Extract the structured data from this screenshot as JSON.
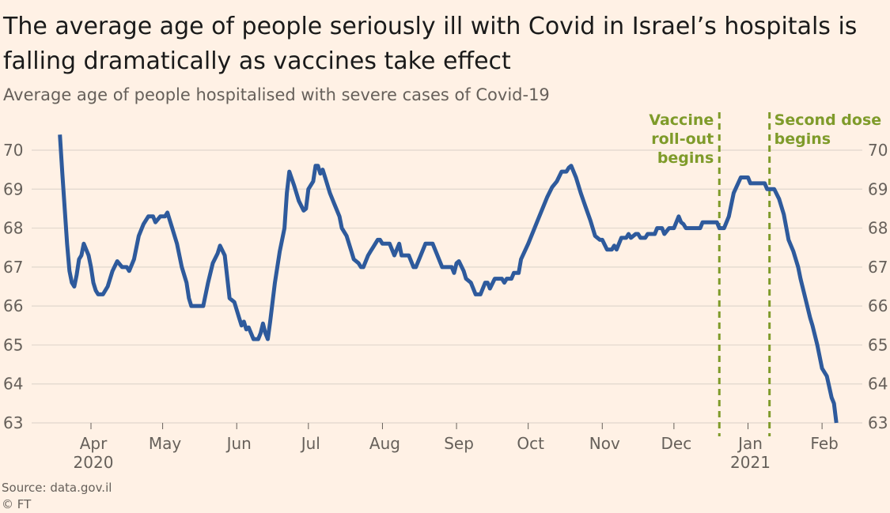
{
  "title": "The average age of people seriously ill with Covid in Israel’s hospitals is falling dramatically as vaccines take effect",
  "subtitle": "Average age of people hospitalised with severe cases of Covid-19",
  "source": "Source: data.gov.il",
  "copyright": "© FT",
  "chart_data": {
    "type": "line",
    "ylim": [
      63,
      70
    ],
    "yticks": [
      63,
      64,
      65,
      66,
      67,
      68,
      69,
      70
    ],
    "grid": true,
    "axis_labels_sides": "both",
    "x_range": [
      "2020-03-19",
      "2021-02-10"
    ],
    "xticks": [
      {
        "date": "2020-04-01",
        "label": "Apr",
        "sublabel": "2020"
      },
      {
        "date": "2020-05-01",
        "label": "May",
        "sublabel": ""
      },
      {
        "date": "2020-06-01",
        "label": "Jun",
        "sublabel": ""
      },
      {
        "date": "2020-07-01",
        "label": "Jul",
        "sublabel": ""
      },
      {
        "date": "2020-08-01",
        "label": "Aug",
        "sublabel": ""
      },
      {
        "date": "2020-09-01",
        "label": "Sep",
        "sublabel": ""
      },
      {
        "date": "2020-10-01",
        "label": "Oct",
        "sublabel": ""
      },
      {
        "date": "2020-11-01",
        "label": "Nov",
        "sublabel": ""
      },
      {
        "date": "2020-12-01",
        "label": "Dec",
        "sublabel": ""
      },
      {
        "date": "2021-01-01",
        "label": "Jan",
        "sublabel": "2021"
      },
      {
        "date": "2021-02-01",
        "label": "Feb",
        "sublabel": ""
      }
    ],
    "annotations": [
      {
        "date": "2020-12-20",
        "lines": [
          "Vaccine",
          "roll-out",
          "begins"
        ],
        "side": "left"
      },
      {
        "date": "2021-01-10",
        "lines": [
          "Second dose",
          "begins"
        ],
        "side": "right"
      }
    ],
    "series_color": "#2e5a9c",
    "annotation_color": "#7f9b2a",
    "series": [
      {
        "points": [
          [
            "2020-03-19",
            70.4
          ],
          [
            "2020-03-20",
            69.4
          ],
          [
            "2020-03-21",
            68.5
          ],
          [
            "2020-03-22",
            67.6
          ],
          [
            "2020-03-23",
            66.9
          ],
          [
            "2020-03-24",
            66.6
          ],
          [
            "2020-03-25",
            66.5
          ],
          [
            "2020-03-26",
            66.8
          ],
          [
            "2020-03-27",
            67.2
          ],
          [
            "2020-03-28",
            67.3
          ],
          [
            "2020-03-29",
            67.6
          ],
          [
            "2020-03-31",
            67.3
          ],
          [
            "2020-04-01",
            67.0
          ],
          [
            "2020-04-02",
            66.6
          ],
          [
            "2020-04-03",
            66.4
          ],
          [
            "2020-04-04",
            66.3
          ],
          [
            "2020-04-06",
            66.3
          ],
          [
            "2020-04-08",
            66.5
          ],
          [
            "2020-04-10",
            66.9
          ],
          [
            "2020-04-12",
            67.15
          ],
          [
            "2020-04-14",
            67.0
          ],
          [
            "2020-04-16",
            67.0
          ],
          [
            "2020-04-17",
            66.9
          ],
          [
            "2020-04-19",
            67.2
          ],
          [
            "2020-04-21",
            67.8
          ],
          [
            "2020-04-23",
            68.1
          ],
          [
            "2020-04-25",
            68.3
          ],
          [
            "2020-04-27",
            68.3
          ],
          [
            "2020-04-28",
            68.15
          ],
          [
            "2020-04-30",
            68.3
          ],
          [
            "2020-05-02",
            68.3
          ],
          [
            "2020-05-03",
            68.4
          ],
          [
            "2020-05-05",
            68.0
          ],
          [
            "2020-05-07",
            67.6
          ],
          [
            "2020-05-09",
            67.0
          ],
          [
            "2020-05-11",
            66.6
          ],
          [
            "2020-05-12",
            66.2
          ],
          [
            "2020-05-13",
            66.0
          ],
          [
            "2020-05-18",
            66.0
          ],
          [
            "2020-05-20",
            66.6
          ],
          [
            "2020-05-22",
            67.1
          ],
          [
            "2020-05-24",
            67.35
          ],
          [
            "2020-05-25",
            67.55
          ],
          [
            "2020-05-27",
            67.3
          ],
          [
            "2020-05-29",
            66.2
          ],
          [
            "2020-05-31",
            66.1
          ],
          [
            "2020-06-02",
            65.7
          ],
          [
            "2020-06-03",
            65.5
          ],
          [
            "2020-06-04",
            65.6
          ],
          [
            "2020-06-05",
            65.4
          ],
          [
            "2020-06-06",
            65.45
          ],
          [
            "2020-06-08",
            65.15
          ],
          [
            "2020-06-10",
            65.15
          ],
          [
            "2020-06-11",
            65.3
          ],
          [
            "2020-06-12",
            65.55
          ],
          [
            "2020-06-13",
            65.3
          ],
          [
            "2020-06-14",
            65.15
          ],
          [
            "2020-06-15",
            65.6
          ],
          [
            "2020-06-17",
            66.6
          ],
          [
            "2020-06-19",
            67.4
          ],
          [
            "2020-06-21",
            68.0
          ],
          [
            "2020-06-22",
            68.9
          ],
          [
            "2020-06-23",
            69.45
          ],
          [
            "2020-06-25",
            69.1
          ],
          [
            "2020-06-27",
            68.7
          ],
          [
            "2020-06-29",
            68.45
          ],
          [
            "2020-06-30",
            68.5
          ],
          [
            "2020-07-01",
            69.0
          ],
          [
            "2020-07-03",
            69.2
          ],
          [
            "2020-07-04",
            69.6
          ],
          [
            "2020-07-05",
            69.6
          ],
          [
            "2020-07-06",
            69.4
          ],
          [
            "2020-07-07",
            69.5
          ],
          [
            "2020-07-08",
            69.3
          ],
          [
            "2020-07-10",
            68.9
          ],
          [
            "2020-07-12",
            68.6
          ],
          [
            "2020-07-14",
            68.3
          ],
          [
            "2020-07-15",
            68.0
          ],
          [
            "2020-07-17",
            67.8
          ],
          [
            "2020-07-19",
            67.4
          ],
          [
            "2020-07-20",
            67.2
          ],
          [
            "2020-07-22",
            67.1
          ],
          [
            "2020-07-23",
            67.0
          ],
          [
            "2020-07-24",
            67.0
          ],
          [
            "2020-07-26",
            67.3
          ],
          [
            "2020-07-27",
            67.4
          ],
          [
            "2020-07-28",
            67.5
          ],
          [
            "2020-07-30",
            67.7
          ],
          [
            "2020-07-31",
            67.7
          ],
          [
            "2020-08-01",
            67.6
          ],
          [
            "2020-08-04",
            67.6
          ],
          [
            "2020-08-06",
            67.3
          ],
          [
            "2020-08-08",
            67.6
          ],
          [
            "2020-08-09",
            67.3
          ],
          [
            "2020-08-12",
            67.3
          ],
          [
            "2020-08-14",
            67.0
          ],
          [
            "2020-08-15",
            67.0
          ],
          [
            "2020-08-17",
            67.3
          ],
          [
            "2020-08-19",
            67.6
          ],
          [
            "2020-08-22",
            67.6
          ],
          [
            "2020-08-24",
            67.3
          ],
          [
            "2020-08-26",
            67.0
          ],
          [
            "2020-08-30",
            67.0
          ],
          [
            "2020-08-31",
            66.85
          ],
          [
            "2020-09-01",
            67.1
          ],
          [
            "2020-09-02",
            67.15
          ],
          [
            "2020-09-04",
            66.9
          ],
          [
            "2020-09-05",
            66.7
          ],
          [
            "2020-09-07",
            66.6
          ],
          [
            "2020-09-09",
            66.3
          ],
          [
            "2020-09-11",
            66.3
          ],
          [
            "2020-09-13",
            66.6
          ],
          [
            "2020-09-14",
            66.6
          ],
          [
            "2020-09-15",
            66.45
          ],
          [
            "2020-09-17",
            66.7
          ],
          [
            "2020-09-20",
            66.7
          ],
          [
            "2020-09-21",
            66.6
          ],
          [
            "2020-09-22",
            66.7
          ],
          [
            "2020-09-24",
            66.7
          ],
          [
            "2020-09-25",
            66.85
          ],
          [
            "2020-09-27",
            66.85
          ],
          [
            "2020-09-28",
            67.2
          ],
          [
            "2020-10-01",
            67.6
          ],
          [
            "2020-10-05",
            68.2
          ],
          [
            "2020-10-09",
            68.8
          ],
          [
            "2020-10-11",
            69.05
          ],
          [
            "2020-10-13",
            69.2
          ],
          [
            "2020-10-15",
            69.45
          ],
          [
            "2020-10-17",
            69.45
          ],
          [
            "2020-10-18",
            69.55
          ],
          [
            "2020-10-19",
            69.6
          ],
          [
            "2020-10-21",
            69.3
          ],
          [
            "2020-10-23",
            68.9
          ],
          [
            "2020-10-25",
            68.55
          ],
          [
            "2020-10-27",
            68.2
          ],
          [
            "2020-10-29",
            67.8
          ],
          [
            "2020-10-31",
            67.7
          ],
          [
            "2020-11-01",
            67.7
          ],
          [
            "2020-11-03",
            67.45
          ],
          [
            "2020-11-05",
            67.45
          ],
          [
            "2020-11-06",
            67.55
          ],
          [
            "2020-11-07",
            67.45
          ],
          [
            "2020-11-09",
            67.75
          ],
          [
            "2020-11-11",
            67.75
          ],
          [
            "2020-11-12",
            67.85
          ],
          [
            "2020-11-13",
            67.75
          ],
          [
            "2020-11-15",
            67.85
          ],
          [
            "2020-11-16",
            67.85
          ],
          [
            "2020-11-17",
            67.75
          ],
          [
            "2020-11-19",
            67.75
          ],
          [
            "2020-11-20",
            67.85
          ],
          [
            "2020-11-23",
            67.85
          ],
          [
            "2020-11-24",
            68.0
          ],
          [
            "2020-11-26",
            68.0
          ],
          [
            "2020-11-27",
            67.85
          ],
          [
            "2020-11-29",
            68.0
          ],
          [
            "2020-12-01",
            68.0
          ],
          [
            "2020-12-02",
            68.15
          ],
          [
            "2020-12-03",
            68.3
          ],
          [
            "2020-12-04",
            68.15
          ],
          [
            "2020-12-05",
            68.1
          ],
          [
            "2020-12-06",
            68.0
          ],
          [
            "2020-12-12",
            68.0
          ],
          [
            "2020-12-13",
            68.15
          ],
          [
            "2020-12-19",
            68.15
          ],
          [
            "2020-12-20",
            68.0
          ],
          [
            "2020-12-22",
            68.0
          ],
          [
            "2020-12-24",
            68.3
          ],
          [
            "2020-12-26",
            68.9
          ],
          [
            "2020-12-29",
            69.3
          ],
          [
            "2021-01-01",
            69.3
          ],
          [
            "2021-01-02",
            69.15
          ],
          [
            "2021-01-08",
            69.15
          ],
          [
            "2021-01-09",
            69.0
          ],
          [
            "2021-01-12",
            69.0
          ],
          [
            "2021-01-14",
            68.75
          ],
          [
            "2021-01-16",
            68.35
          ],
          [
            "2021-01-18",
            67.7
          ],
          [
            "2021-01-20",
            67.4
          ],
          [
            "2021-01-22",
            67.0
          ],
          [
            "2021-01-23",
            66.7
          ],
          [
            "2021-01-25",
            66.2
          ],
          [
            "2021-01-27",
            65.7
          ],
          [
            "2021-01-28",
            65.5
          ],
          [
            "2021-01-30",
            65.0
          ],
          [
            "2021-02-01",
            64.4
          ],
          [
            "2021-02-03",
            64.2
          ],
          [
            "2021-02-05",
            63.65
          ],
          [
            "2021-02-06",
            63.5
          ],
          [
            "2021-02-07",
            63.0
          ]
        ]
      }
    ]
  }
}
